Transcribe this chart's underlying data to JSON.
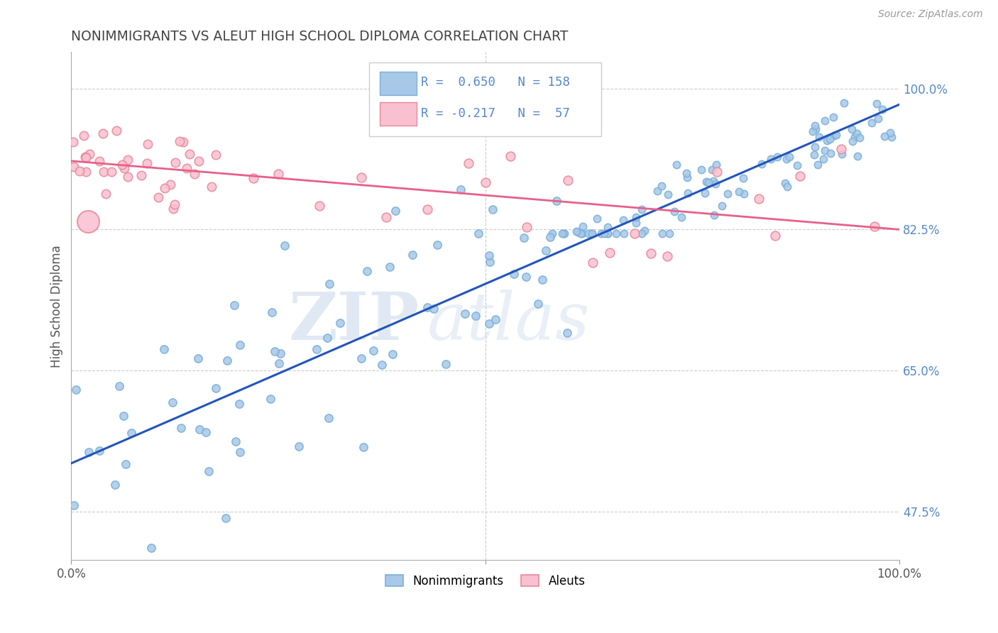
{
  "title": "NONIMMIGRANTS VS ALEUT HIGH SCHOOL DIPLOMA CORRELATION CHART",
  "source": "Source: ZipAtlas.com",
  "ylabel": "High School Diploma",
  "xlim": [
    0.0,
    1.0
  ],
  "ylim": [
    0.415,
    1.045
  ],
  "ytick_labels": [
    "47.5%",
    "65.0%",
    "82.5%",
    "100.0%"
  ],
  "ytick_values": [
    0.475,
    0.65,
    0.825,
    1.0
  ],
  "watermark_zip": "ZIP",
  "watermark_atlas": "atlas",
  "R_blue": 0.65,
  "N_blue": 158,
  "R_pink": -0.217,
  "N_pink": 57,
  "blue_marker_color": "#a8c8e8",
  "blue_edge_color": "#7ab0d8",
  "pink_marker_color": "#f8c0d0",
  "pink_edge_color": "#e8899a",
  "blue_line_color": "#2255bb",
  "pink_line_color": "#e8608a",
  "background_color": "#ffffff",
  "grid_color": "#cccccc",
  "title_color": "#444444",
  "axis_label_color": "#555555",
  "right_tick_color": "#5588cc",
  "legend_r_color": "#5588cc",
  "legend_n_color": "#e05080",
  "blue_line_intercept": 0.535,
  "blue_line_slope": 0.445,
  "pink_line_intercept": 0.91,
  "pink_line_slope": -0.085
}
